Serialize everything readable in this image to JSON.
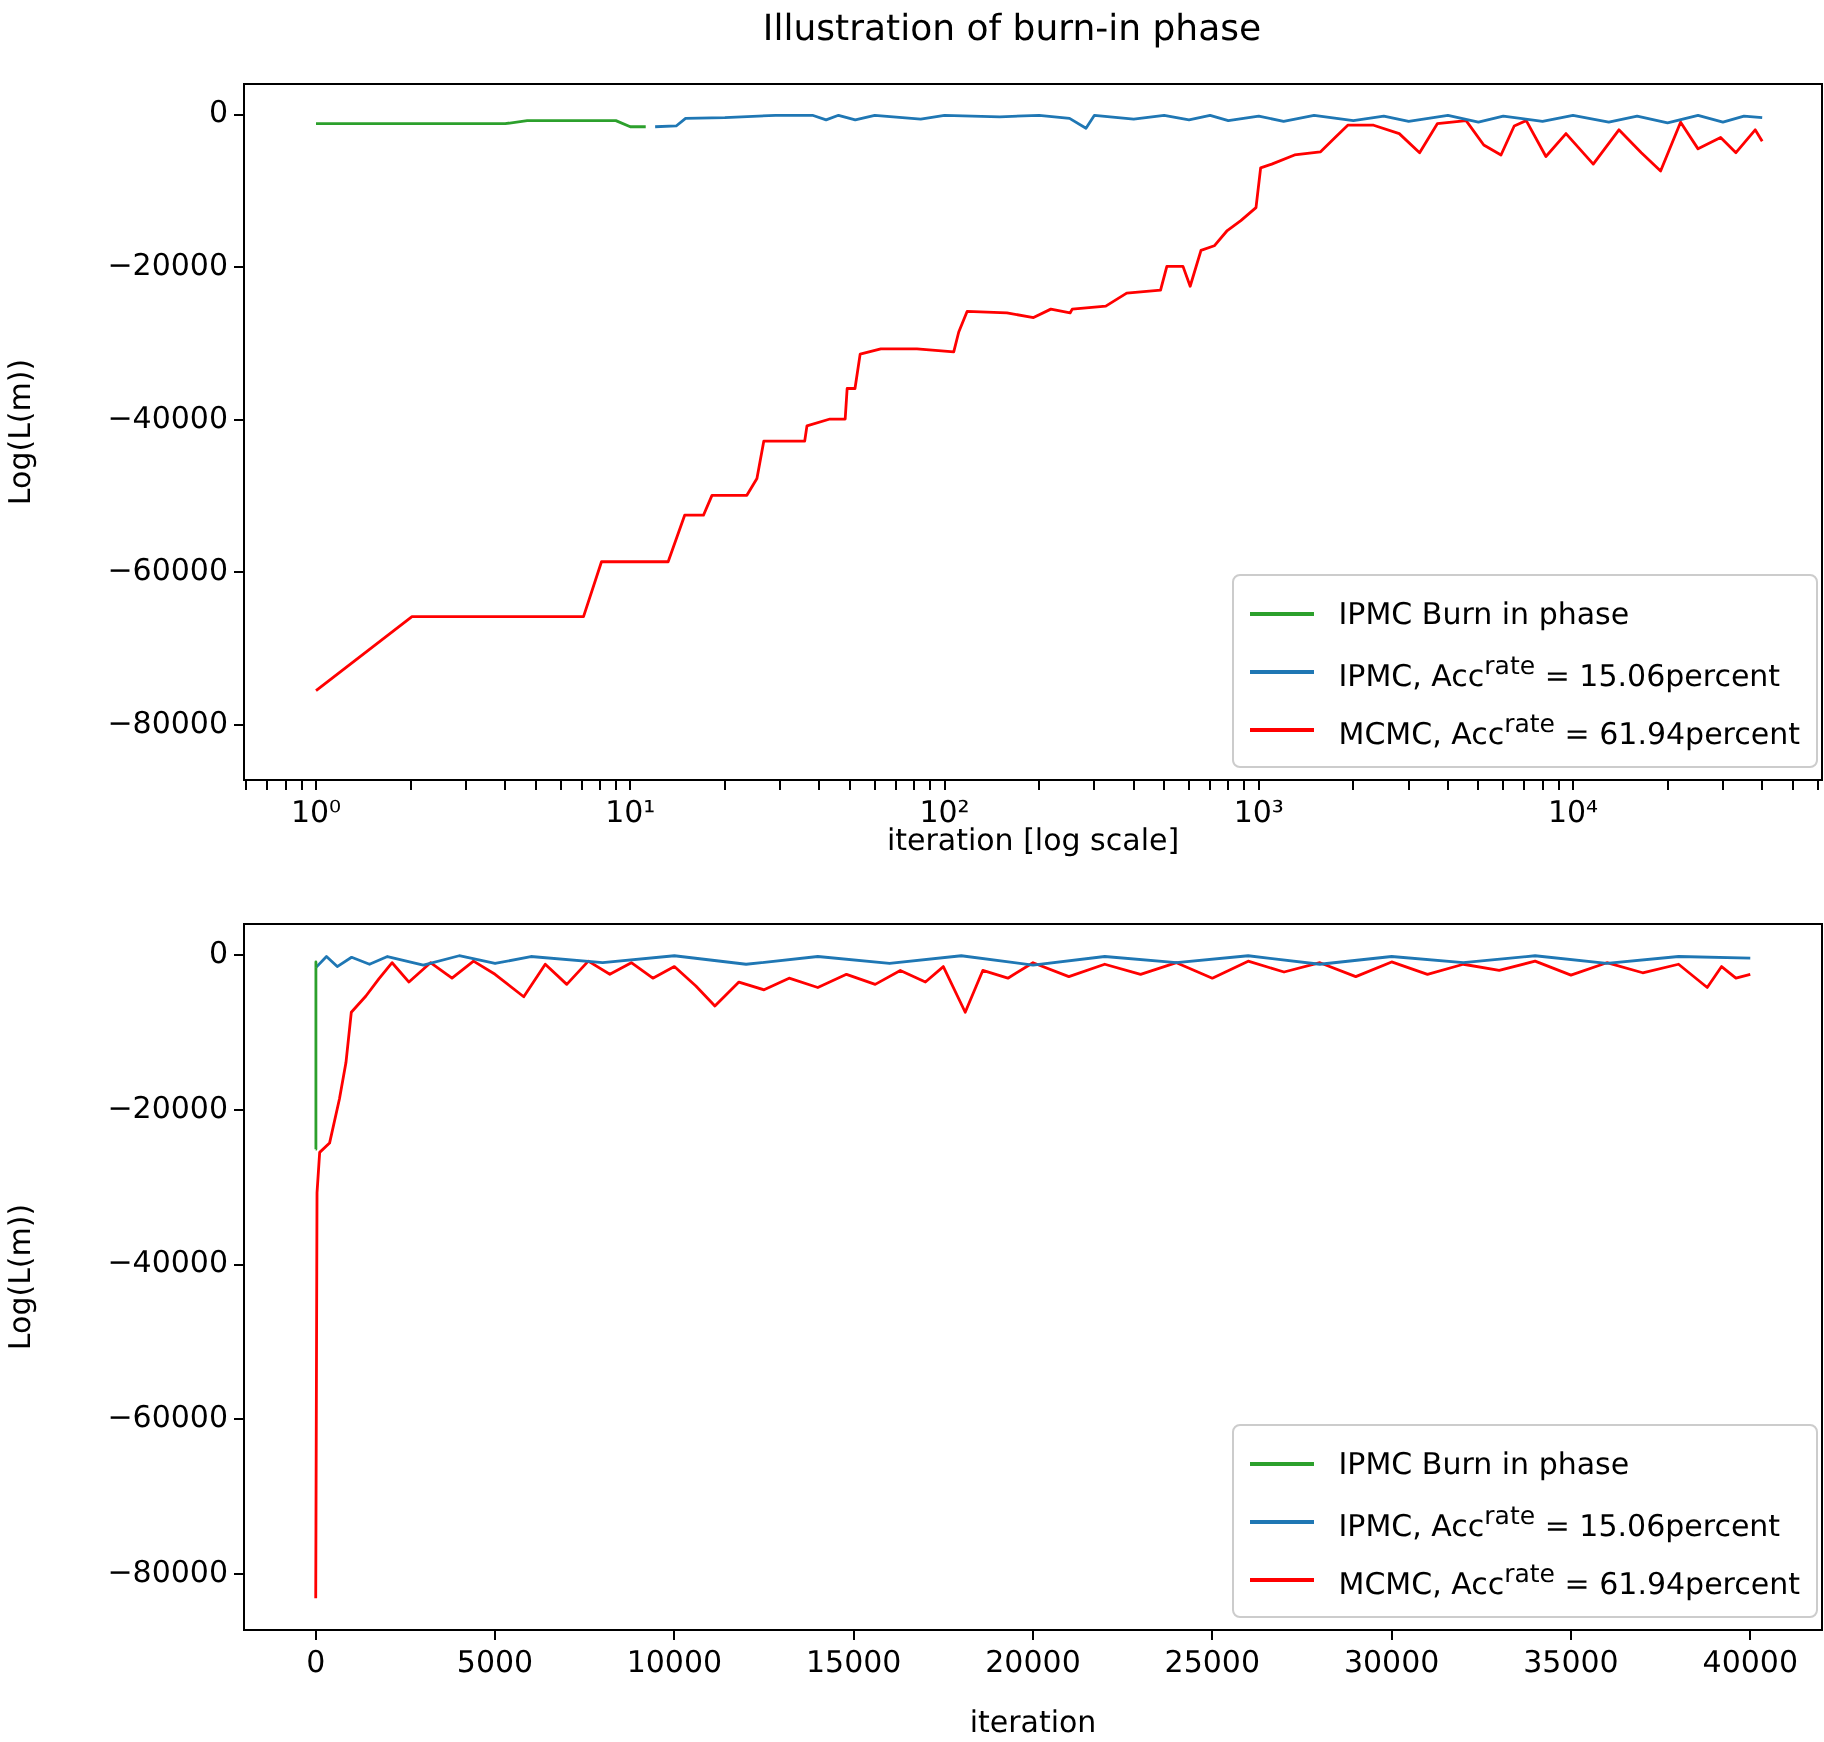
{
  "chart_data": [
    {
      "type": "line",
      "title": "Illustration of burn-in phase",
      "xlabel": "iteration [log scale]",
      "ylabel": "Log(L(m))",
      "log": "x",
      "grid": false,
      "legend": "bottom right",
      "xlim": [
        0.59,
        62000
      ],
      "ylim": [
        -87200,
        4000
      ],
      "xticks": [
        {
          "value": 0.6,
          "label": null
        },
        {
          "value": 0.7,
          "label": null
        },
        {
          "value": 0.8,
          "label": null
        },
        {
          "value": 0.9,
          "label": null
        },
        {
          "value": 1,
          "label": "10⁰"
        },
        {
          "value": 2,
          "label": null
        },
        {
          "value": 3,
          "label": null
        },
        {
          "value": 4,
          "label": null
        },
        {
          "value": 5,
          "label": null
        },
        {
          "value": 6,
          "label": null
        },
        {
          "value": 7,
          "label": null
        },
        {
          "value": 8,
          "label": null
        },
        {
          "value": 9,
          "label": null
        },
        {
          "value": 10,
          "label": "10¹"
        },
        {
          "value": 20,
          "label": null
        },
        {
          "value": 30,
          "label": null
        },
        {
          "value": 40,
          "label": null
        },
        {
          "value": 50,
          "label": null
        },
        {
          "value": 60,
          "label": null
        },
        {
          "value": 70,
          "label": null
        },
        {
          "value": 80,
          "label": null
        },
        {
          "value": 90,
          "label": null
        },
        {
          "value": 100,
          "label": "10²"
        },
        {
          "value": 200,
          "label": null
        },
        {
          "value": 300,
          "label": null
        },
        {
          "value": 400,
          "label": null
        },
        {
          "value": 500,
          "label": null
        },
        {
          "value": 600,
          "label": null
        },
        {
          "value": 700,
          "label": null
        },
        {
          "value": 800,
          "label": null
        },
        {
          "value": 900,
          "label": null
        },
        {
          "value": 1000,
          "label": "10³"
        },
        {
          "value": 2000,
          "label": null
        },
        {
          "value": 3000,
          "label": null
        },
        {
          "value": 4000,
          "label": null
        },
        {
          "value": 5000,
          "label": null
        },
        {
          "value": 6000,
          "label": null
        },
        {
          "value": 7000,
          "label": null
        },
        {
          "value": 8000,
          "label": null
        },
        {
          "value": 9000,
          "label": null
        },
        {
          "value": 10000,
          "label": "10⁴"
        },
        {
          "value": 20000,
          "label": null
        },
        {
          "value": 30000,
          "label": null
        },
        {
          "value": 40000,
          "label": null
        },
        {
          "value": 50000,
          "label": null
        },
        {
          "value": 60000,
          "label": null
        }
      ],
      "yticks": [
        {
          "value": -80000,
          "label": "−80000"
        },
        {
          "value": -60000,
          "label": "−60000"
        },
        {
          "value": -40000,
          "label": "−40000"
        },
        {
          "value": -20000,
          "label": "−20000"
        },
        0
      ],
      "series": [
        {
          "name": "IPMC Burn in phase",
          "color": "#2ca02c",
          "x": [
            1,
            4,
            4.7,
            9,
            10,
            11.2
          ],
          "values": [
            -1200,
            -1200,
            -800,
            -800,
            -1600,
            -1600
          ]
        },
        {
          "name": "IPMC, Acc$^{rate}$ = 15.06percent",
          "color": "#1f77b4",
          "x": [
            12,
            14,
            15,
            20,
            29,
            38,
            42,
            46,
            52,
            60,
            84,
            100,
            150,
            200,
            250,
            282,
            300,
            400,
            500,
            600,
            700,
            800,
            1000,
            1200,
            1500,
            2000,
            2500,
            3000,
            4000,
            5000,
            6000,
            8000,
            10000,
            13000,
            16000,
            20000,
            25000,
            30000,
            35000,
            40000
          ],
          "values": [
            -1600,
            -1500,
            -500,
            -400,
            -100,
            -100,
            -700,
            -100,
            -700,
            -100,
            -600,
            -100,
            -300,
            -100,
            -500,
            -1800,
            -100,
            -600,
            -100,
            -700,
            -100,
            -800,
            -200,
            -900,
            -100,
            -800,
            -200,
            -900,
            -100,
            -1000,
            -200,
            -900,
            -100,
            -1000,
            -200,
            -1100,
            -100,
            -1000,
            -200,
            -400
          ]
        },
        {
          "name": "MCMC, Acc$^{rate}$ = 61.94percent",
          "color": "#ff0000",
          "x": [
            1,
            2.02,
            7.1,
            8.1,
            13.2,
            14.9,
            17.1,
            18.2,
            23.5,
            25.3,
            26.6,
            35.9,
            36.5,
            43.2,
            48.3,
            49,
            51.9,
            53.9,
            62.7,
            81.7,
            107,
            111,
            118,
            158,
            192,
            218,
            251,
            255,
            326,
            380,
            487,
            510,
            574,
            605,
            655,
            722,
            794,
            877,
            980,
            1014,
            1100,
            1300,
            1570,
            1740,
            1920,
            2320,
            2800,
            3250,
            3700,
            4570,
            5200,
            5900,
            6500,
            7100,
            8200,
            9500,
            11600,
            14000,
            16500,
            19000,
            22000,
            25000,
            29500,
            33000,
            38000,
            40000
          ],
          "values": [
            -75500,
            -65800,
            -65800,
            -58600,
            -58600,
            -52500,
            -52500,
            -49900,
            -49900,
            -47700,
            -42800,
            -42800,
            -40800,
            -39900,
            -39900,
            -35900,
            -35900,
            -31400,
            -30700,
            -30700,
            -31100,
            -28500,
            -25800,
            -26000,
            -26600,
            -25500,
            -26000,
            -25500,
            -25100,
            -23400,
            -23000,
            -19900,
            -19900,
            -22500,
            -17800,
            -17200,
            -15200,
            -13900,
            -12200,
            -7000,
            -6500,
            -5300,
            -4900,
            -3100,
            -1400,
            -1400,
            -2500,
            -5000,
            -1200,
            -800,
            -4000,
            -5300,
            -1500,
            -800,
            -5500,
            -2500,
            -6500,
            -2000,
            -5000,
            -7400,
            -1000,
            -4500,
            -3000,
            -5000,
            -2000,
            -3500
          ]
        }
      ]
    },
    {
      "type": "line",
      "xlabel": "iteration",
      "ylabel": "Log(L(m))",
      "grid": false,
      "legend": "bottom right",
      "xlim": [
        -2000,
        42000
      ],
      "ylim": [
        -87200,
        4000
      ],
      "xticks": [
        0,
        5000,
        10000,
        15000,
        20000,
        25000,
        30000,
        35000,
        40000
      ],
      "yticks": [
        {
          "value": -80000,
          "label": "−80000"
        },
        {
          "value": -60000,
          "label": "−60000"
        },
        {
          "value": -40000,
          "label": "−40000"
        },
        {
          "value": -20000,
          "label": "−20000"
        },
        0
      ],
      "series": [
        {
          "name": "IPMC Burn in phase",
          "color": "#2ca02c",
          "x": [
            0,
            5,
            10
          ],
          "values": [
            -25100,
            -900,
            -1600
          ]
        },
        {
          "name": "IPMC, Acc$^{rate}$ = 15.06percent",
          "color": "#1f77b4",
          "x": [
            10,
            300,
            600,
            1000,
            1500,
            2000,
            3000,
            4000,
            5000,
            6000,
            8000,
            10000,
            12000,
            14000,
            16000,
            18000,
            20000,
            22000,
            24000,
            26000,
            28000,
            30000,
            32000,
            34000,
            36000,
            38000,
            40000
          ],
          "values": [
            -1600,
            -200,
            -1500,
            -300,
            -1200,
            -200,
            -1300,
            -100,
            -1100,
            -200,
            -1000,
            -100,
            -1200,
            -200,
            -1100,
            -100,
            -1300,
            -200,
            -1000,
            -100,
            -1200,
            -200,
            -1000,
            -100,
            -1100,
            -200,
            -400
          ]
        },
        {
          "name": "MCMC, Acc$^{rate}$ = 61.94percent",
          "color": "#ff0000",
          "x": [
            0,
            36,
            110,
            386,
            661,
            843,
            992,
            1400,
            1760,
            2130,
            2600,
            3200,
            3800,
            4400,
            5000,
            5800,
            6400,
            7000,
            7600,
            8200,
            8800,
            9400,
            10000,
            10600,
            11130,
            11800,
            12500,
            13200,
            14000,
            14800,
            15600,
            16300,
            17000,
            17500,
            18110,
            18600,
            19300,
            20000,
            21000,
            22000,
            23000,
            24000,
            25000,
            26000,
            27000,
            28000,
            29000,
            30000,
            31000,
            32000,
            33000,
            34000,
            35000,
            36000,
            37000,
            38000,
            38800,
            39200,
            39600,
            40000
          ],
          "values": [
            -83100,
            -30700,
            -25500,
            -24300,
            -18600,
            -13900,
            -7400,
            -5300,
            -3100,
            -1000,
            -3500,
            -1000,
            -3000,
            -800,
            -2500,
            -5400,
            -1200,
            -3800,
            -800,
            -2500,
            -1000,
            -3000,
            -1500,
            -4000,
            -6600,
            -3500,
            -4500,
            -3000,
            -4200,
            -2500,
            -3800,
            -2000,
            -3500,
            -1500,
            -7400,
            -2000,
            -3000,
            -1000,
            -2800,
            -1200,
            -2500,
            -1000,
            -3000,
            -800,
            -2200,
            -1000,
            -2800,
            -900,
            -2500,
            -1200,
            -2000,
            -800,
            -2600,
            -1000,
            -2300,
            -1200,
            -4200,
            -1500,
            -3000,
            -2500
          ]
        }
      ]
    }
  ]
}
